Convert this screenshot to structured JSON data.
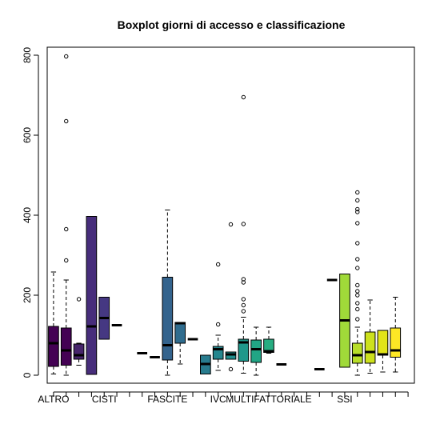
{
  "chart_data": {
    "type": "boxplot",
    "title": "Boxplot giorni di accesso e classificazione",
    "xlabel": "",
    "ylabel": "",
    "ylim": [
      -20,
      820
    ],
    "y_ticks": [
      0,
      200,
      400,
      600,
      800
    ],
    "x_tick_labels": [
      {
        "label": "ALTRO",
        "slot": 1
      },
      {
        "label": "CISTI",
        "slot": 5
      },
      {
        "label": "FASCITE",
        "slot": 10
      },
      {
        "label": "IVC",
        "slot": 14
      },
      {
        "label": "MULTIFATTORIALE",
        "slot": 18
      },
      {
        "label": "SSI",
        "slot": 24
      }
    ],
    "n_slots": 29,
    "boxes": [
      {
        "slot": 1,
        "color": "#440154",
        "min": 3,
        "q1": 22,
        "median": 80,
        "q3": 122,
        "max": 258,
        "outliers": []
      },
      {
        "slot": 2,
        "color": "#440154",
        "min": 0,
        "q1": 25,
        "median": 62,
        "q3": 118,
        "max": 238,
        "outliers": [
          287,
          365,
          635,
          797
        ]
      },
      {
        "slot": 3,
        "color": "#46256b",
        "min": 25,
        "q1": 40,
        "median": 50,
        "q3": 78,
        "max": 80,
        "outliers": [
          190
        ]
      },
      {
        "slot": 4,
        "color": "#472d7b",
        "min": 2,
        "q1": 2,
        "median": 122,
        "q3": 397,
        "max": 397,
        "outliers": []
      },
      {
        "slot": 5,
        "color": "#453882",
        "min": 90,
        "q1": 90,
        "median": 143,
        "q3": 195,
        "max": 195,
        "outliers": []
      },
      {
        "slot": 6,
        "color": "#404386",
        "min": 125,
        "q1": 125,
        "median": 125,
        "q3": 125,
        "max": 125,
        "outliers": []
      },
      {
        "slot": 8,
        "color": "#3b528b",
        "min": 55,
        "q1": 55,
        "median": 55,
        "q3": 55,
        "max": 55,
        "outliers": []
      },
      {
        "slot": 9,
        "color": "#355e8d",
        "min": 45,
        "q1": 45,
        "median": 45,
        "q3": 45,
        "max": 45,
        "outliers": []
      },
      {
        "slot": 10,
        "color": "#33638d",
        "min": 0,
        "q1": 38,
        "median": 75,
        "q3": 245,
        "max": 413,
        "outliers": []
      },
      {
        "slot": 11,
        "color": "#2f6c8e",
        "min": 28,
        "q1": 80,
        "median": 130,
        "q3": 132,
        "max": 132,
        "outliers": []
      },
      {
        "slot": 12,
        "color": "#2c728e",
        "min": 90,
        "q1": 90,
        "median": 90,
        "q3": 90,
        "max": 90,
        "outliers": []
      },
      {
        "slot": 13,
        "color": "#287c8e",
        "min": 3,
        "q1": 3,
        "median": 28,
        "q3": 50,
        "max": 50,
        "outliers": []
      },
      {
        "slot": 14,
        "color": "#24868e",
        "min": 12,
        "q1": 40,
        "median": 65,
        "q3": 72,
        "max": 100,
        "outliers": [
          127,
          277
        ]
      },
      {
        "slot": 15,
        "color": "#218e8d",
        "min": 40,
        "q1": 40,
        "median": 52,
        "q3": 58,
        "max": 58,
        "outliers": [
          15,
          377
        ]
      },
      {
        "slot": 16,
        "color": "#1f988b",
        "min": 5,
        "q1": 35,
        "median": 82,
        "q3": 90,
        "max": 145,
        "outliers": [
          160,
          175,
          190,
          232,
          240,
          378,
          695
        ]
      },
      {
        "slot": 17,
        "color": "#21a585",
        "min": 0,
        "q1": 32,
        "median": 65,
        "q3": 88,
        "max": 120,
        "outliers": []
      },
      {
        "slot": 18,
        "color": "#27ad81",
        "min": 55,
        "q1": 57,
        "median": 60,
        "q3": 90,
        "max": 120,
        "outliers": []
      },
      {
        "slot": 19,
        "color": "#2ab07f",
        "min": 27,
        "q1": 27,
        "median": 27,
        "q3": 27,
        "max": 27,
        "outliers": []
      },
      {
        "slot": 22,
        "color": "#6ece58",
        "min": 15,
        "q1": 15,
        "median": 15,
        "q3": 15,
        "max": 15,
        "outliers": []
      },
      {
        "slot": 23,
        "color": "#7ad151",
        "min": 238,
        "q1": 238,
        "median": 238,
        "q3": 238,
        "max": 238,
        "outliers": []
      },
      {
        "slot": 24,
        "color": "#a0da39",
        "min": 20,
        "q1": 20,
        "median": 137,
        "q3": 253,
        "max": 253,
        "outliers": []
      },
      {
        "slot": 25,
        "color": "#b8de29",
        "min": 0,
        "q1": 30,
        "median": 50,
        "q3": 80,
        "max": 120,
        "outliers": [
          140,
          165,
          180,
          200,
          210,
          225,
          268,
          290,
          330,
          380,
          408,
          415,
          437,
          457
        ]
      },
      {
        "slot": 26,
        "color": "#cde11d",
        "min": 5,
        "q1": 30,
        "median": 58,
        "q3": 108,
        "max": 188,
        "outliers": []
      },
      {
        "slot": 27,
        "color": "#e2e418",
        "min": 8,
        "q1": 50,
        "median": 52,
        "q3": 112,
        "max": 112,
        "outliers": []
      },
      {
        "slot": 28,
        "color": "#fde725",
        "min": 8,
        "q1": 45,
        "median": 62,
        "q3": 118,
        "max": 195,
        "outliers": []
      }
    ]
  }
}
